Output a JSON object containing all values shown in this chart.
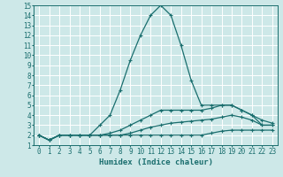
{
  "xlabel": "Humidex (Indice chaleur)",
  "xlim": [
    -0.5,
    23.5
  ],
  "ylim": [
    1,
    15
  ],
  "xticks": [
    0,
    1,
    2,
    3,
    4,
    5,
    6,
    7,
    8,
    9,
    10,
    11,
    12,
    13,
    14,
    15,
    16,
    17,
    18,
    19,
    20,
    21,
    22,
    23
  ],
  "yticks": [
    1,
    2,
    3,
    4,
    5,
    6,
    7,
    8,
    9,
    10,
    11,
    12,
    13,
    14,
    15
  ],
  "bg_color": "#cde8e8",
  "line_color": "#1a6e6e",
  "grid_color": "#ffffff",
  "series": [
    {
      "x": [
        0,
        1,
        2,
        3,
        4,
        5,
        6,
        7,
        8,
        9,
        10,
        11,
        12,
        13,
        14,
        15,
        16,
        17,
        18,
        19,
        20,
        21,
        22,
        23
      ],
      "y": [
        2,
        1.5,
        2,
        2,
        2,
        2,
        2,
        2,
        2,
        2,
        2,
        2,
        2,
        2,
        2,
        2,
        2,
        2.2,
        2.4,
        2.5,
        2.5,
        2.5,
        2.5,
        2.5
      ]
    },
    {
      "x": [
        0,
        1,
        2,
        3,
        4,
        5,
        6,
        7,
        8,
        9,
        10,
        11,
        12,
        13,
        14,
        15,
        16,
        17,
        18,
        19,
        20,
        21,
        22,
        23
      ],
      "y": [
        2,
        1.5,
        2,
        2,
        2,
        2,
        2,
        2,
        2,
        2.2,
        2.5,
        2.8,
        3,
        3.2,
        3.3,
        3.4,
        3.5,
        3.6,
        3.8,
        4,
        3.8,
        3.5,
        3,
        3
      ]
    },
    {
      "x": [
        0,
        1,
        2,
        3,
        4,
        5,
        6,
        7,
        8,
        9,
        10,
        11,
        12,
        13,
        14,
        15,
        16,
        17,
        18,
        19,
        20,
        21,
        22,
        23
      ],
      "y": [
        2,
        1.5,
        2,
        2,
        2,
        2,
        2,
        2.2,
        2.5,
        3,
        3.5,
        4,
        4.5,
        4.5,
        4.5,
        4.5,
        4.5,
        4.7,
        5,
        5,
        4.5,
        4,
        3.5,
        3.2
      ]
    },
    {
      "x": [
        0,
        1,
        2,
        3,
        4,
        5,
        6,
        7,
        8,
        9,
        10,
        11,
        12,
        13,
        14,
        15,
        16,
        17,
        18,
        19,
        20,
        21,
        22,
        23
      ],
      "y": [
        2,
        1.5,
        2,
        2,
        2,
        2,
        3,
        4,
        6.5,
        9.5,
        12,
        14,
        15,
        14,
        11,
        7.5,
        5,
        5,
        5,
        5,
        4.5,
        4,
        3,
        3
      ]
    }
  ]
}
